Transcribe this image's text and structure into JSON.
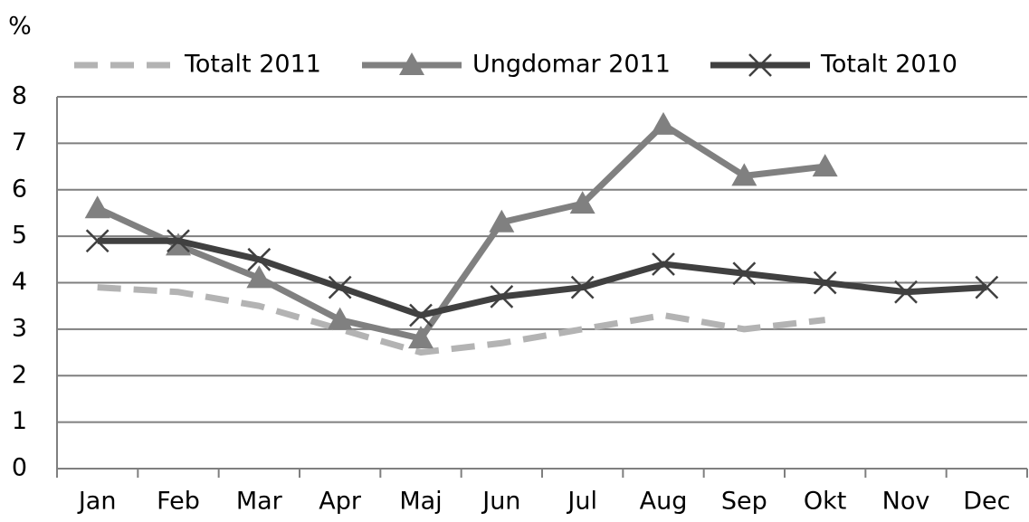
{
  "chart_data": {
    "type": "line",
    "y_label": "%",
    "categories": [
      "Jan",
      "Feb",
      "Mar",
      "Apr",
      "Maj",
      "Jun",
      "Jul",
      "Aug",
      "Sep",
      "Okt",
      "Nov",
      "Dec"
    ],
    "series": [
      {
        "name": "Totalt 2011",
        "color": "#b3b3b3",
        "style": "dashed",
        "marker": "none",
        "values": [
          3.9,
          3.8,
          3.5,
          3.0,
          2.5,
          2.7,
          3.0,
          3.3,
          3.0,
          3.2,
          null,
          null
        ]
      },
      {
        "name": "Ungdomar 2011",
        "color": "#808080",
        "style": "solid",
        "marker": "triangle",
        "values": [
          5.6,
          4.8,
          4.1,
          3.2,
          2.8,
          5.3,
          5.7,
          7.4,
          6.3,
          6.5,
          null,
          null
        ]
      },
      {
        "name": "Totalt 2010",
        "color": "#404040",
        "style": "solid",
        "marker": "x",
        "values": [
          4.9,
          4.9,
          4.5,
          3.9,
          3.3,
          3.7,
          3.9,
          4.4,
          4.2,
          4.0,
          3.8,
          3.9
        ]
      }
    ],
    "ylim": [
      0,
      8
    ],
    "yticks": [
      0,
      1,
      2,
      3,
      4,
      5,
      6,
      7,
      8
    ],
    "grid": true,
    "legend": "top"
  }
}
